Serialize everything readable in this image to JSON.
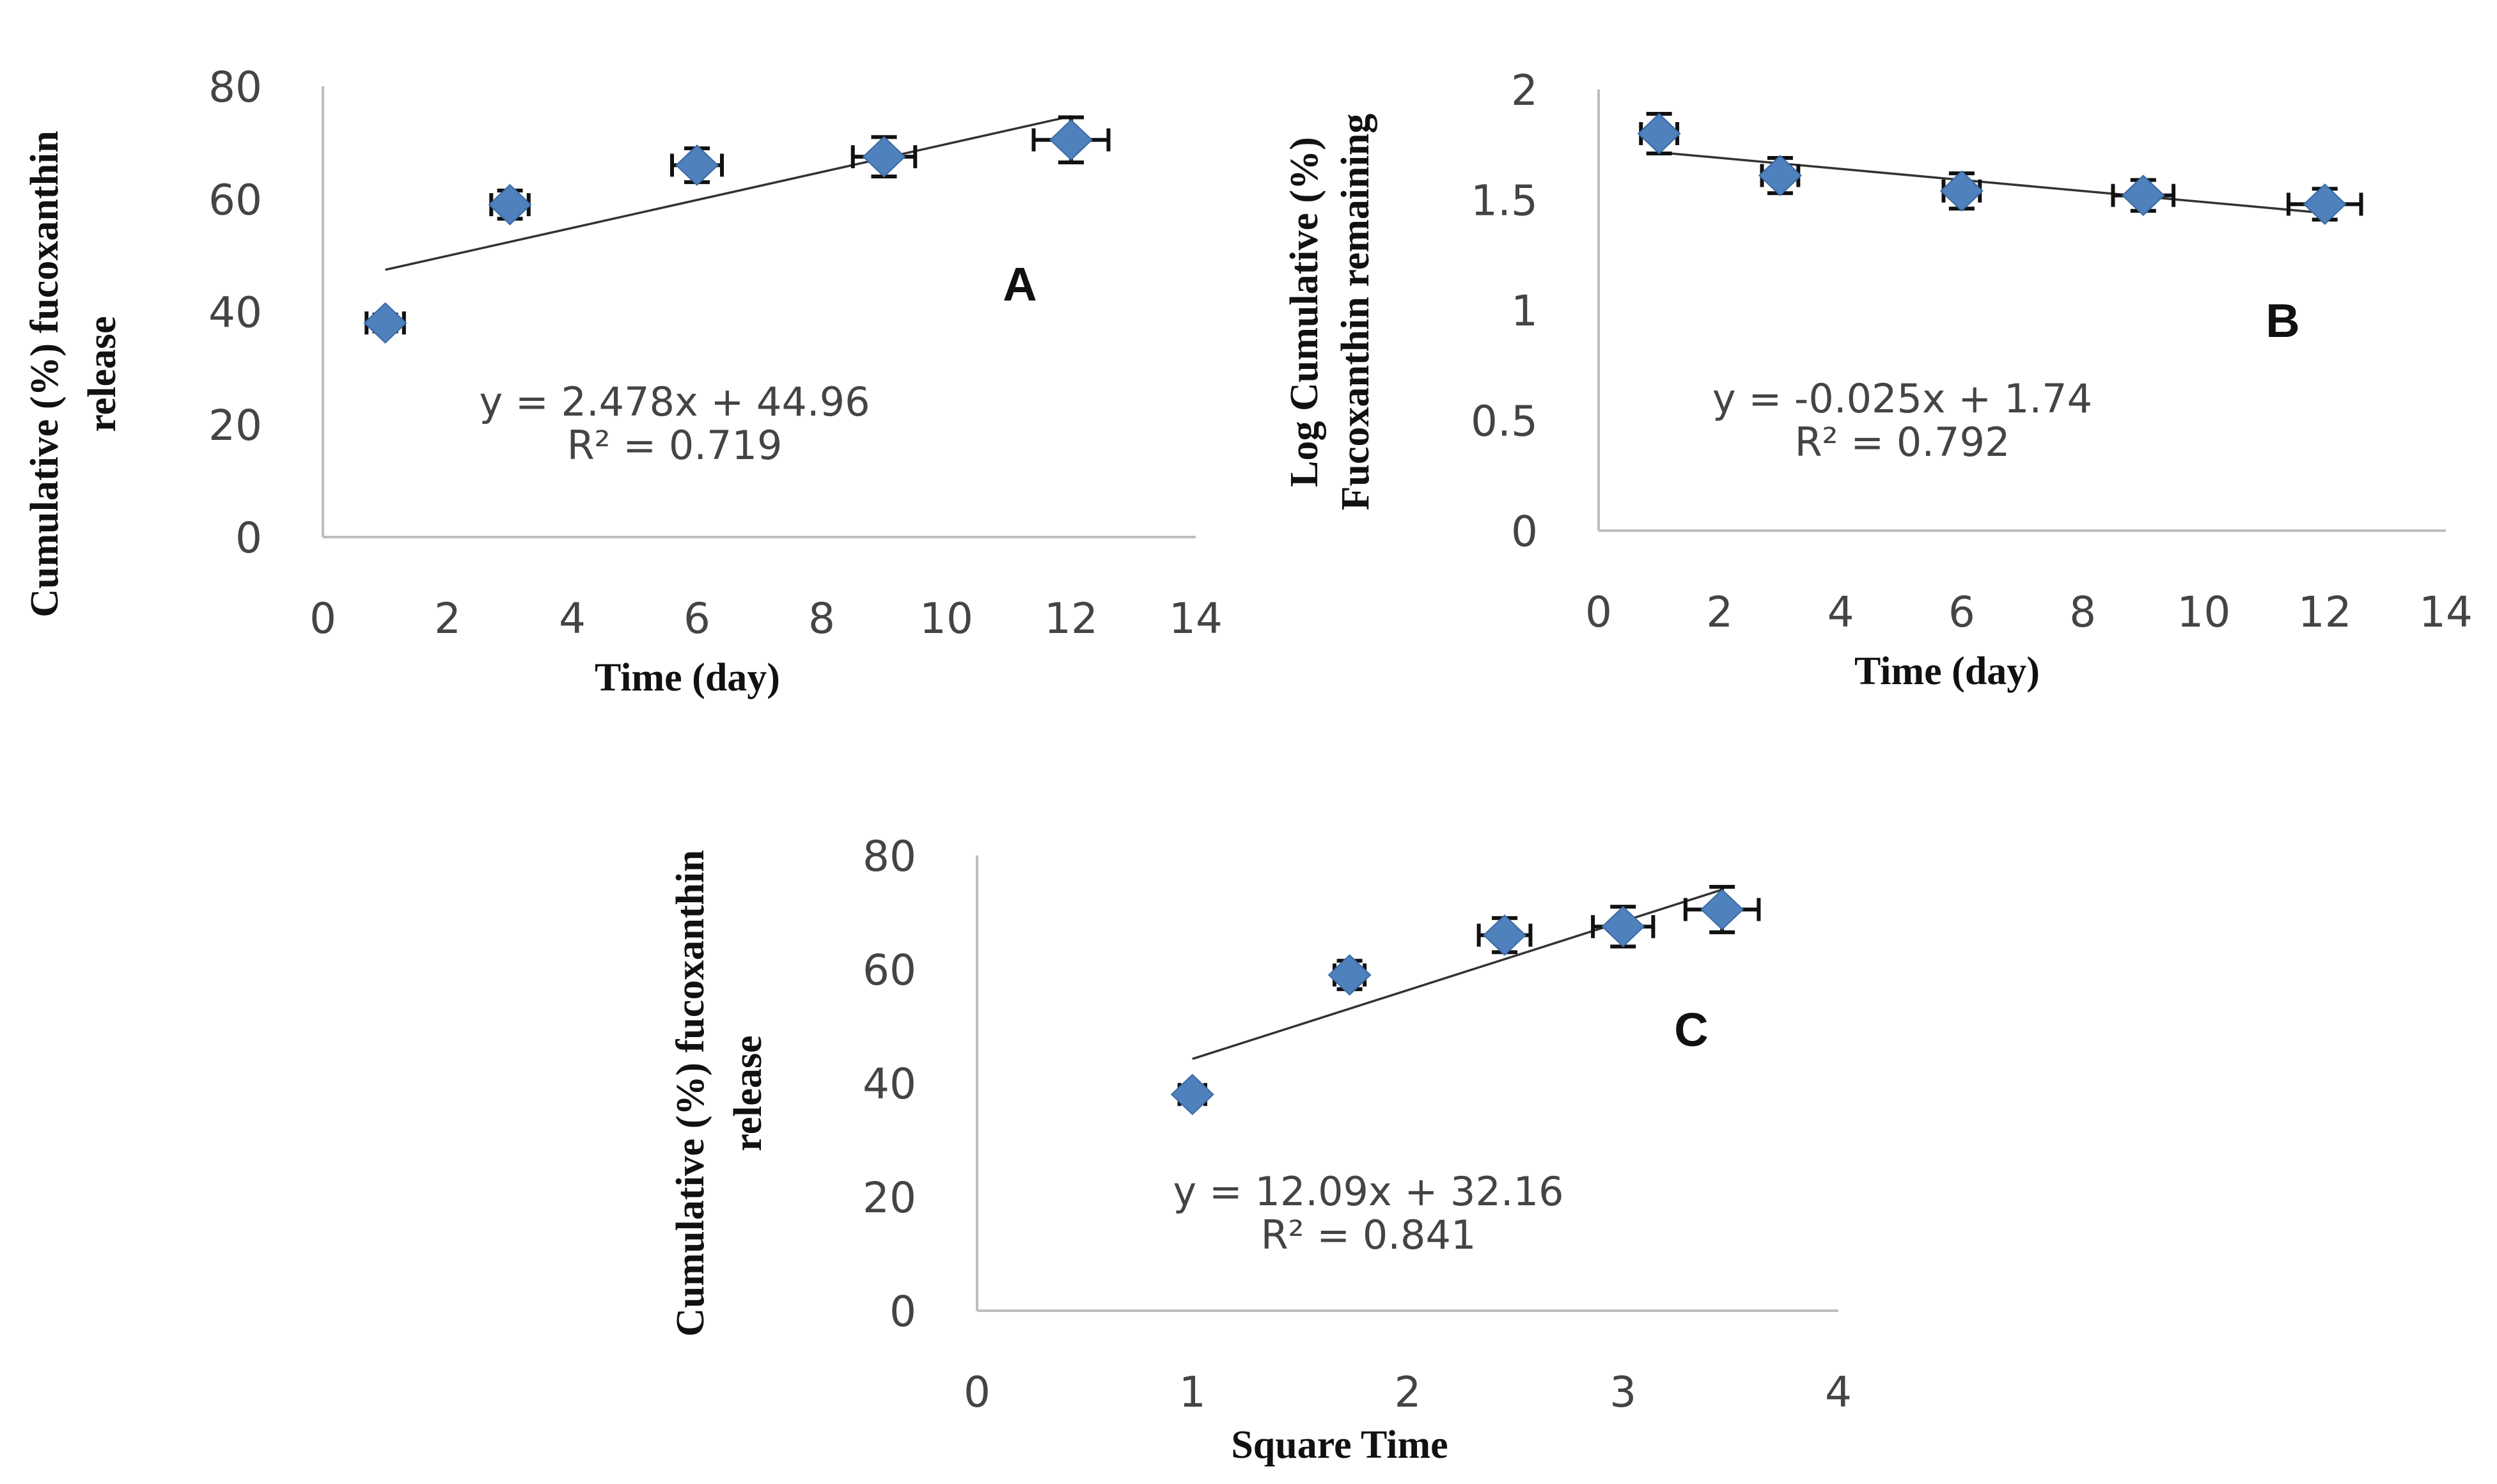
{
  "chart_data": [
    {
      "type": "scatter",
      "panel_label": "A",
      "xlabel": "Time (day)",
      "ylabel": [
        "Cumulative (%) fucoxanthin",
        "release"
      ],
      "xlim": [
        0,
        14
      ],
      "ylim": [
        0,
        80
      ],
      "xticks": [
        "0",
        "2",
        "4",
        "6",
        "8",
        "10",
        "12",
        "14"
      ],
      "yticks": [
        "0",
        "20",
        "40",
        "60",
        "80"
      ],
      "points": [
        {
          "x": 1,
          "y": 38,
          "xerr": 0.3,
          "yerr": 1.5
        },
        {
          "x": 3,
          "y": 59,
          "xerr": 0.3,
          "yerr": 2.5
        },
        {
          "x": 6,
          "y": 66,
          "xerr": 0.4,
          "yerr": 3
        },
        {
          "x": 9,
          "y": 67.5,
          "xerr": 0.5,
          "yerr": 3.5
        },
        {
          "x": 12,
          "y": 70.5,
          "xerr": 0.6,
          "yerr": 4
        }
      ],
      "trendline": {
        "slope": 2.478,
        "intercept": 44.96,
        "x_range": [
          1,
          12
        ]
      },
      "equation": "y = 2.478x  + 44.96",
      "r_squared": "R² = 0.719",
      "grid": false,
      "legend": "none"
    },
    {
      "type": "scatter",
      "panel_label": "B",
      "xlabel": "Time (day)",
      "ylabel": [
        "Log Cumulative (%)",
        "Fucoxanthin remaining"
      ],
      "xlim": [
        0,
        14
      ],
      "ylim": [
        0,
        2
      ],
      "xticks": [
        "0",
        "2",
        "4",
        "6",
        "8",
        "10",
        "12",
        "14"
      ],
      "yticks": [
        "0",
        "0.5",
        "1",
        "1.5",
        "2"
      ],
      "points": [
        {
          "x": 1,
          "y": 1.8,
          "xerr": 0.3,
          "yerr": 0.09
        },
        {
          "x": 3,
          "y": 1.61,
          "xerr": 0.3,
          "yerr": 0.08
        },
        {
          "x": 6,
          "y": 1.54,
          "xerr": 0.3,
          "yerr": 0.08
        },
        {
          "x": 9,
          "y": 1.52,
          "xerr": 0.5,
          "yerr": 0.07
        },
        {
          "x": 12,
          "y": 1.48,
          "xerr": 0.6,
          "yerr": 0.07
        }
      ],
      "trendline": {
        "slope": -0.025,
        "intercept": 1.74,
        "x_range": [
          1,
          12
        ]
      },
      "equation": "y = -0.025x  + 1.74",
      "r_squared": "R² = 0.792",
      "grid": false,
      "legend": "none"
    },
    {
      "type": "scatter",
      "panel_label": "C",
      "xlabel": "Square Time",
      "ylabel": [
        "Cumulative (%) fucoxanthin",
        "release"
      ],
      "xlim": [
        0,
        4
      ],
      "ylim": [
        0,
        80
      ],
      "xticks": [
        "0",
        "1",
        "2",
        "3",
        "4"
      ],
      "yticks": [
        "0",
        "20",
        "40",
        "60",
        "80"
      ],
      "points": [
        {
          "x": 1,
          "y": 38,
          "xerr": 0.06,
          "yerr": 1.5
        },
        {
          "x": 1.73,
          "y": 59,
          "xerr": 0.07,
          "yerr": 2.5
        },
        {
          "x": 2.45,
          "y": 66,
          "xerr": 0.12,
          "yerr": 3
        },
        {
          "x": 3,
          "y": 67.5,
          "xerr": 0.14,
          "yerr": 3.5
        },
        {
          "x": 3.46,
          "y": 70.5,
          "xerr": 0.17,
          "yerr": 4
        }
      ],
      "trendline": {
        "slope": 12.09,
        "intercept": 32.16,
        "x_range": [
          1,
          3.46
        ]
      },
      "equation": "y = 12.09x  + 32.16",
      "r_squared": "R² = 0.841",
      "grid": false,
      "legend": "none"
    }
  ],
  "colors": {
    "marker": "#4f81bd",
    "errorbar": "#111111",
    "trendline": "#333333",
    "axis": "#bdbdbd"
  }
}
